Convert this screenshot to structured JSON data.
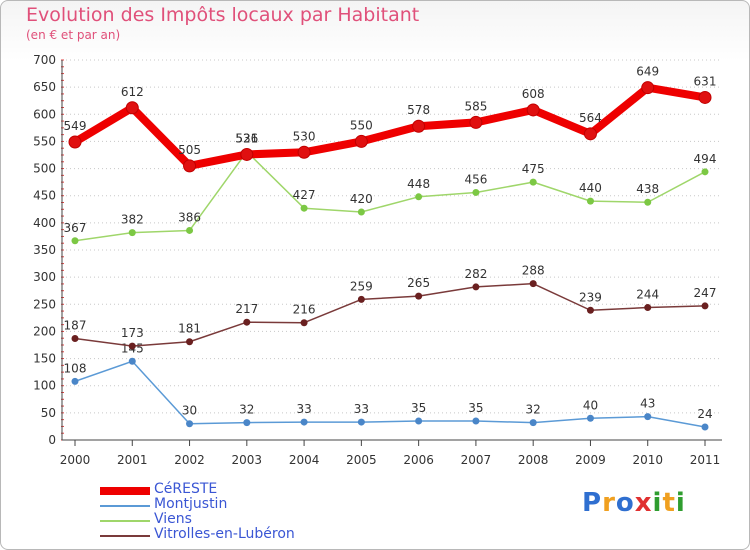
{
  "header": {
    "title": "Evolution des Impôts locaux par Habitant",
    "subtitle": "(en € et par an)"
  },
  "logo": {
    "text": "Proxiti",
    "letter_colors": [
      "#2f6fd0",
      "#f0a020",
      "#2f6fd0",
      "#e03030",
      "#2f9d2f",
      "#f0a020",
      "#2f9d2f"
    ]
  },
  "chart_data": {
    "type": "line",
    "title": "Evolution des Impôts locaux par Habitant",
    "subtitle": "(en € et par an)",
    "x": [
      "2000",
      "2001",
      "2002",
      "2003",
      "2004",
      "2005",
      "2006",
      "2007",
      "2008",
      "2009",
      "2010",
      "2011"
    ],
    "ylim": [
      0,
      700
    ],
    "yticks": [
      0,
      50,
      100,
      150,
      200,
      250,
      300,
      350,
      400,
      450,
      500,
      550,
      600,
      650,
      700
    ],
    "grid": "horizontal dotted",
    "legend_position": "bottom-left",
    "series": [
      {
        "name": "CéRESTE",
        "color": "#ee0000",
        "marker": "#e01010",
        "emphasis": true,
        "values": [
          549,
          612,
          505,
          526,
          530,
          550,
          578,
          585,
          608,
          564,
          649,
          631
        ],
        "labels": [
          "549",
          "612",
          "505",
          "526",
          "530",
          "550",
          "578",
          "585",
          "608",
          "564",
          "649",
          "631"
        ]
      },
      {
        "name": "Montjustin",
        "color": "#5b9ad6",
        "marker": "#4a86c8",
        "emphasis": false,
        "values": [
          108,
          145,
          30,
          32,
          33,
          33,
          35,
          35,
          32,
          40,
          43,
          24
        ],
        "labels": [
          "108",
          "145",
          "30",
          "32",
          "33",
          "33",
          "35",
          "35",
          "32",
          "40",
          "43",
          "24"
        ]
      },
      {
        "name": "Viens",
        "color": "#9fd66a",
        "marker": "#7cc844",
        "emphasis": false,
        "values": [
          367,
          382,
          386,
          531,
          427,
          420,
          448,
          456,
          475,
          440,
          438,
          494
        ],
        "labels": [
          "367",
          "382",
          "386",
          "531",
          "427",
          "420",
          "448",
          "456",
          "475",
          "440",
          "438",
          "494"
        ]
      },
      {
        "name": "Vitrolles-en-Lubéron",
        "color": "#7a3a3a",
        "marker": "#6a2020",
        "emphasis": false,
        "values": [
          187,
          173,
          181,
          217,
          216,
          259,
          265,
          282,
          288,
          239,
          244,
          247
        ],
        "labels": [
          "187",
          "173",
          "181",
          "217",
          "216",
          "259",
          "265",
          "282",
          "288",
          "239",
          "244",
          "247"
        ]
      }
    ]
  }
}
